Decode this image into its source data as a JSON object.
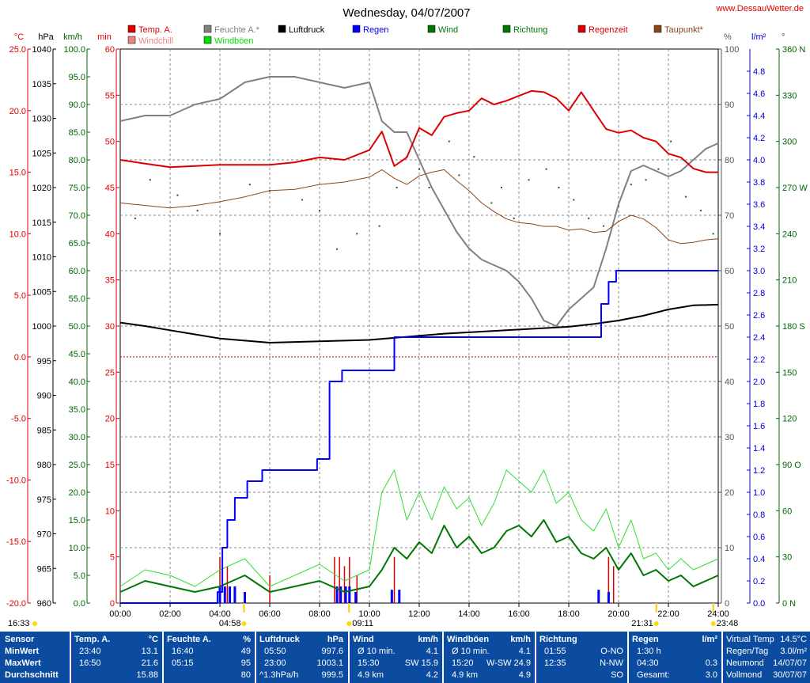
{
  "chart_data": {
    "type": "line",
    "title": "Wednesday, 04/07/2007",
    "site": "www.DessauWetter.de",
    "x_ticks": [
      "00:00",
      "02:00",
      "04:00",
      "06:00",
      "08:00",
      "10:00",
      "12:00",
      "14:00",
      "16:00",
      "18:00",
      "20:00",
      "22:00",
      "24:00"
    ],
    "axes_left": [
      {
        "unit": "°C",
        "color": "#dd0000",
        "range": [
          -20,
          25
        ],
        "ticks": [
          "25.0",
          "20.0",
          "15.0",
          "10.0",
          "5.0",
          "0.0",
          "-5.0",
          "-10.0",
          "-15.0",
          "-20.0"
        ]
      },
      {
        "unit": "hPa",
        "color": "#000000",
        "range": [
          960,
          1040
        ],
        "ticks": [
          "1040",
          "1035",
          "1030",
          "1025",
          "1020",
          "1015",
          "1010",
          "1005",
          "1000",
          "995",
          "990",
          "985",
          "980",
          "975",
          "970",
          "965",
          "960"
        ]
      },
      {
        "unit": "km/h",
        "color": "#006600",
        "range": [
          0,
          100
        ],
        "ticks": [
          "100.0",
          "95.0",
          "90.0",
          "85.0",
          "80.0",
          "75.0",
          "70.0",
          "65.0",
          "60.0",
          "55.0",
          "50.0",
          "45.0",
          "40.0",
          "35.0",
          "30.0",
          "25.0",
          "20.0",
          "15.0",
          "10.0",
          "5.0",
          "0.0"
        ]
      },
      {
        "unit": "min",
        "color": "#dd0000",
        "range": [
          0,
          60
        ],
        "ticks": [
          "60",
          "55",
          "50",
          "45",
          "40",
          "35",
          "30",
          "25",
          "20",
          "15",
          "10",
          "5",
          "0"
        ]
      }
    ],
    "axes_right": [
      {
        "unit": "%",
        "color": "#555555",
        "range": [
          0,
          100
        ],
        "ticks": [
          "100",
          "90",
          "80",
          "70",
          "60",
          "50",
          "40",
          "30",
          "20",
          "10",
          "0"
        ]
      },
      {
        "unit": "l/m²",
        "color": "#0000dd",
        "range": [
          0,
          5
        ],
        "ticks": [
          "4.8",
          "4.6",
          "4.4",
          "4.2",
          "4.0",
          "3.8",
          "3.6",
          "3.4",
          "3.2",
          "3.0",
          "2.8",
          "2.6",
          "2.4",
          "2.2",
          "2.0",
          "1.8",
          "1.6",
          "1.4",
          "1.2",
          "1.0",
          "0.8",
          "0.6",
          "0.4",
          "0.2",
          "0.0"
        ]
      },
      {
        "unit": "°",
        "color": "#006600",
        "range": [
          0,
          360
        ],
        "ticks": [
          "360 N",
          "330",
          "300",
          "270 W",
          "240",
          "210",
          "180 S",
          "150",
          "120",
          "90 O",
          "60",
          "30",
          "0 N"
        ]
      }
    ],
    "legend": [
      {
        "name": "Temp. A.",
        "color": "#dd0000"
      },
      {
        "name": "Windchill",
        "color": "#ee8080"
      },
      {
        "name": "Feuchte A.*",
        "color": "#808080"
      },
      {
        "name": "Windböen",
        "color": "#00dd00"
      },
      {
        "name": "Luftdruck",
        "color": "#000000"
      },
      {
        "name": "Regen",
        "color": "#0000ff"
      },
      {
        "name": "Wind",
        "color": "#007700"
      },
      {
        "name": "Richtung",
        "color": "#007700"
      },
      {
        "name": "Regenzeit",
        "color": "#dd0000"
      },
      {
        "name": "Taupunkt*",
        "color": "#8b4513"
      }
    ],
    "series": [
      {
        "name": "Temp. A.",
        "axis": "°C",
        "x": [
          0,
          1,
          2,
          3,
          4,
          5,
          6,
          7,
          8,
          9,
          10,
          10.5,
          11,
          11.5,
          12,
          12.5,
          13,
          13.5,
          14,
          14.5,
          15,
          15.5,
          16,
          16.5,
          17,
          17.5,
          18,
          18.5,
          19,
          19.5,
          20,
          20.5,
          21,
          21.5,
          22,
          22.5,
          23,
          23.5,
          24
        ],
        "values": [
          16.0,
          15.7,
          15.4,
          15.5,
          15.6,
          15.6,
          15.6,
          15.8,
          16.2,
          16.0,
          16.8,
          18.3,
          15.5,
          16.2,
          18.6,
          18.0,
          19.5,
          19.8,
          20.0,
          21.0,
          20.5,
          20.8,
          21.2,
          21.6,
          21.5,
          21.0,
          20.0,
          21.5,
          20.0,
          18.5,
          18.2,
          18.4,
          17.8,
          17.5,
          16.5,
          16.2,
          15.3,
          15.0,
          15.0
        ]
      },
      {
        "name": "Taupunkt*",
        "axis": "°C",
        "x": [
          0,
          1,
          2,
          3,
          4,
          5,
          6,
          7,
          8,
          9,
          10,
          10.5,
          11,
          11.5,
          12,
          12.5,
          13,
          13.5,
          14,
          14.5,
          15,
          15.5,
          16,
          16.5,
          17,
          17.5,
          18,
          18.5,
          19,
          19.5,
          20,
          20.5,
          21,
          21.5,
          22,
          22.5,
          23,
          23.5,
          24
        ],
        "values": [
          12.5,
          12.3,
          12.1,
          12.3,
          12.6,
          13.0,
          13.5,
          13.6,
          14.0,
          14.2,
          14.6,
          15.2,
          14.5,
          14.0,
          14.7,
          15.0,
          15.2,
          14.3,
          13.5,
          12.5,
          11.8,
          11.2,
          10.9,
          10.8,
          10.6,
          10.6,
          10.3,
          10.4,
          10.1,
          10.2,
          11.0,
          11.5,
          11.2,
          10.5,
          9.5,
          9.2,
          9.3,
          9.5,
          9.6
        ]
      },
      {
        "name": "Feuchte A.*",
        "axis": "%",
        "x": [
          0,
          1,
          2,
          3,
          4,
          5,
          6,
          7,
          8,
          9,
          10,
          10.5,
          11,
          11.5,
          12,
          12.5,
          13,
          13.5,
          14,
          14.5,
          15,
          15.5,
          16,
          16.5,
          17,
          17.5,
          18,
          18.5,
          19,
          19.5,
          20,
          20.5,
          21,
          21.5,
          22,
          22.5,
          23,
          23.5,
          24
        ],
        "values": [
          87,
          88,
          88,
          90,
          91,
          94,
          95,
          95,
          94,
          93,
          94,
          87,
          85,
          85,
          80,
          75,
          71,
          67,
          64,
          62,
          61,
          60,
          58,
          55,
          51,
          50,
          53,
          55,
          57,
          64,
          72,
          78,
          79,
          78,
          77,
          78,
          80,
          82,
          83
        ]
      },
      {
        "name": "Luftdruck",
        "axis": "hPa",
        "x": [
          0,
          1,
          2,
          3,
          4,
          5,
          6,
          7,
          8,
          9,
          10,
          11,
          12,
          13,
          14,
          15,
          16,
          17,
          18,
          19,
          20,
          21,
          22,
          23,
          24
        ],
        "values": [
          1000.5,
          1000.0,
          999.4,
          998.8,
          998.2,
          997.9,
          997.6,
          997.7,
          997.8,
          997.9,
          998.0,
          998.3,
          998.6,
          998.9,
          999.1,
          999.3,
          999.5,
          999.7,
          999.9,
          1000.3,
          1000.8,
          1001.5,
          1002.4,
          1003.0,
          1003.1
        ]
      },
      {
        "name": "Regen",
        "axis": "l/m²",
        "x": [
          0,
          3.9,
          4.1,
          4.3,
          4.6,
          5.1,
          5.7,
          6.2,
          7.9,
          8.4,
          8.9,
          9.5,
          11.0,
          11.4,
          19.3,
          19.6,
          19.9,
          24
        ],
        "values": [
          0,
          0.1,
          0.5,
          0.75,
          0.95,
          1.1,
          1.2,
          1.2,
          1.3,
          2.0,
          2.1,
          2.1,
          2.4,
          2.4,
          2.7,
          2.9,
          3.0,
          3.0
        ]
      },
      {
        "name": "Wind",
        "axis": "km/h",
        "x": [
          0,
          1,
          2,
          3,
          4,
          5,
          6,
          7,
          8,
          9,
          10,
          10.5,
          11,
          11.5,
          12,
          12.5,
          13,
          13.5,
          14,
          14.5,
          15,
          15.5,
          16,
          16.5,
          17,
          17.5,
          18,
          18.5,
          19,
          19.5,
          20,
          20.5,
          21,
          21.5,
          22,
          22.5,
          23,
          23.5,
          24
        ],
        "values": [
          2,
          4,
          3,
          2,
          3,
          5,
          2,
          3,
          4,
          2,
          3,
          6,
          10,
          8,
          11,
          9,
          14,
          10,
          12,
          9,
          10,
          13,
          14,
          12,
          15,
          11,
          12,
          9,
          8,
          10,
          6,
          9,
          5,
          6,
          4,
          5,
          3,
          4,
          5
        ]
      },
      {
        "name": "Windböen",
        "axis": "km/h",
        "x": [
          0,
          1,
          2,
          3,
          4,
          5,
          6,
          7,
          8,
          9,
          10,
          10.5,
          11,
          11.5,
          12,
          12.5,
          13,
          13.5,
          14,
          14.5,
          15,
          15.5,
          16,
          16.5,
          17,
          17.5,
          18,
          18.5,
          19,
          19.5,
          20,
          20.5,
          21,
          21.5,
          22,
          22.5,
          23,
          23.5,
          24
        ],
        "values": [
          3,
          6,
          5,
          3,
          6,
          8,
          3,
          5,
          7,
          4,
          6,
          20,
          24,
          15,
          20,
          15,
          21,
          17,
          19,
          14,
          18,
          24,
          22,
          20,
          24,
          18,
          20,
          15,
          13,
          17,
          10,
          15,
          8,
          9,
          6,
          8,
          6,
          7,
          8
        ]
      }
    ],
    "direction_points": [
      [
        0.6,
        250
      ],
      [
        1.2,
        275
      ],
      [
        2.3,
        265
      ],
      [
        3.1,
        255
      ],
      [
        4.0,
        240
      ],
      [
        5.2,
        272
      ],
      [
        6.0,
        268
      ],
      [
        7.3,
        262
      ],
      [
        8.0,
        255
      ],
      [
        8.7,
        230
      ],
      [
        9.5,
        240
      ],
      [
        10.4,
        245
      ],
      [
        11.1,
        270
      ],
      [
        11.5,
        290
      ],
      [
        12.0,
        282
      ],
      [
        12.4,
        270
      ],
      [
        13.2,
        300
      ],
      [
        13.6,
        278
      ],
      [
        14.2,
        290
      ],
      [
        14.9,
        260
      ],
      [
        15.3,
        270
      ],
      [
        15.8,
        250
      ],
      [
        16.4,
        275
      ],
      [
        17.1,
        282
      ],
      [
        17.6,
        270
      ],
      [
        18.2,
        262
      ],
      [
        18.8,
        250
      ],
      [
        19.4,
        245
      ],
      [
        20.0,
        258
      ],
      [
        20.5,
        272
      ],
      [
        21.1,
        275
      ],
      [
        21.6,
        282
      ],
      [
        22.1,
        300
      ],
      [
        22.7,
        264
      ],
      [
        23.3,
        255
      ],
      [
        23.8,
        240
      ]
    ],
    "rain_time_bars": [
      [
        4.0,
        5
      ],
      [
        4.3,
        4
      ],
      [
        6.0,
        3
      ],
      [
        8.6,
        5
      ],
      [
        8.8,
        5
      ],
      [
        9.0,
        4
      ],
      [
        9.2,
        5
      ],
      [
        9.5,
        3
      ],
      [
        11.0,
        5
      ],
      [
        19.6,
        5
      ],
      [
        19.8,
        4
      ]
    ],
    "rain_bars_blue": [
      [
        4.0,
        0.15
      ],
      [
        4.2,
        0.15
      ],
      [
        4.4,
        0.15
      ],
      [
        4.6,
        0.15
      ],
      [
        5.0,
        0.1
      ],
      [
        8.7,
        0.15
      ],
      [
        8.85,
        0.15
      ],
      [
        9.05,
        0.15
      ],
      [
        9.2,
        0.15
      ],
      [
        9.45,
        0.1
      ],
      [
        10.9,
        0.12
      ],
      [
        11.2,
        0.12
      ],
      [
        19.2,
        0.12
      ],
      [
        19.6,
        0.1
      ]
    ],
    "sun_times": {
      "sunrise": "04:58",
      "sunset": "21:31",
      "moonrise": "09:11",
      "moonset": "23:48",
      "prev_sunset": "16:33"
    },
    "stats": {
      "headers": {
        "sensor": "Sensor",
        "temp": "Temp. A.",
        "temp_unit": "°C",
        "feuchte": "Feuchte A.",
        "feuchte_unit": "%",
        "luftdruck": "Luftdruck",
        "luftdruck_unit": "hPa",
        "wind": "Wind",
        "wind_unit": "km/h",
        "boeen": "Windböen",
        "boeen_unit": "km/h",
        "richtung": "Richtung",
        "regen": "Regen",
        "regen_unit": "l/m²",
        "virtual": "Virtual Temp",
        "virtual_val": "14.5°C"
      },
      "rows": [
        {
          "label": "MinWert",
          "temp_t": "23:40",
          "temp_v": "13.1",
          "feuchte_t": "16:40",
          "feuchte_v": "49",
          "luft_t": "05:50",
          "luft_v": "997.6",
          "wind_t": "Ø 10 min.",
          "wind_v": "4.1",
          "boeen_t": "Ø 10 min.",
          "boeen_v": "4.1",
          "richt_t": "01:55",
          "richt_v": "O-NO",
          "regen_t": "1:30 h",
          "regen_v": "",
          "extra_l": "Regen/Tag",
          "extra_v": "3.0l/m²"
        },
        {
          "label": "MaxWert",
          "temp_t": "16:50",
          "temp_v": "21.6",
          "feuchte_t": "05:15",
          "feuchte_v": "95",
          "luft_t": "23:00",
          "luft_v": "1003.1",
          "wind_t": "15:30",
          "wind_v": "SW 15.9",
          "boeen_t": "15:20",
          "boeen_v": "W-SW 24.9",
          "richt_t": "12:35",
          "richt_v": "N-NW",
          "regen_t": "04:30",
          "regen_v": "0.3",
          "extra_l": "Neumond",
          "extra_v": "14/07/07"
        },
        {
          "label": "Durchschnitt",
          "temp_t": "",
          "temp_v": "15.88",
          "feuchte_t": "",
          "feuchte_v": "80",
          "luft_t": "^1.3hPa/h",
          "luft_v": "999.5",
          "wind_t": "4.9 km",
          "wind_v": "4.2",
          "boeen_t": "4.9 km",
          "boeen_v": "4.9",
          "richt_t": "",
          "richt_v": "SO",
          "regen_t": "Gesamt:",
          "regen_v": "3.0",
          "extra_l": "Vollmond",
          "extra_v": "30/07/07"
        }
      ]
    }
  }
}
